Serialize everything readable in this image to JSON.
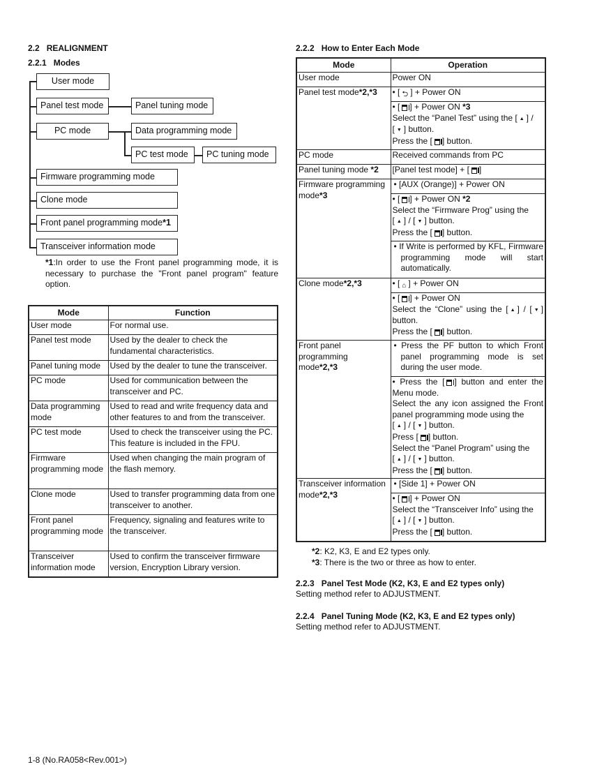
{
  "section": {
    "number": "2.2",
    "title": "REALIGNMENT"
  },
  "sub1": {
    "number": "2.2.1",
    "title": "Modes"
  },
  "diagram": {
    "user": "User mode",
    "panel_test": "Panel test mode",
    "panel_tuning": "Panel tuning mode",
    "pc": "PC mode",
    "data_prog": "Data programming mode",
    "pc_test": "PC test mode",
    "pc_tuning": "PC tuning mode",
    "firmware": "Firmware programming mode",
    "clone": "Clone mode",
    "front": "Front panel programming mode",
    "front_mark": "*1",
    "transceiver": "Transceiver information mode"
  },
  "footnote1": {
    "mark": "*1",
    "text": ":In order to use the Front panel programming mode, it is necessary to purchase the \"Front panel program\" feature option."
  },
  "function_table": {
    "headers": [
      "Mode",
      "Function"
    ],
    "rows": [
      [
        "User mode",
        "For normal use."
      ],
      [
        "Panel test mode",
        "Used by the dealer to check the fundamental characteristics."
      ],
      [
        "Panel tuning mode",
        "Used by the dealer to tune the transceiver."
      ],
      [
        "PC mode",
        "Used for communication between the transceiver and PC."
      ],
      [
        "Data programming mode",
        "Used to read and write frequency data and other features to and from the transceiver."
      ],
      [
        "PC test mode",
        "Used to check the transceiver using the PC. This feature is included in the FPU."
      ],
      [
        "Firmware programming mode",
        "Used when changing the main program of the flash memory."
      ],
      [
        "Clone mode",
        "Used to transfer programming data from one transceiver to another."
      ],
      [
        "Front panel programming mode",
        "Frequency, signaling and features write to the transceiver."
      ],
      [
        "Transceiver information mode",
        "Used to confirm the transceiver firmware version, Encryption Library version."
      ]
    ]
  },
  "sub2": {
    "number": "2.2.2",
    "title": "How to Enter Each Mode"
  },
  "enter_table": {
    "headers": [
      "Mode",
      "Operation"
    ],
    "rows": [
      {
        "mode": [
          "User mode"
        ],
        "ops": [
          [
            [
              "Power ON"
            ]
          ]
        ]
      },
      {
        "mode": [
          "Panel test mode",
          {
            "b": "*2,*3"
          }
        ],
        "ops": [
          [
            [
              "• [",
              {
                "icon": "back"
              },
              "] + Power ON"
            ]
          ],
          [
            [
              "• [",
              {
                "icon": "menu"
              },
              "] + Power ON ",
              {
                "b": "*3"
              }
            ],
            [
              "Select the “Panel Test” using the [",
              {
                "icon": "up"
              },
              "] /"
            ],
            [
              "[",
              {
                "icon": "down"
              },
              "] button."
            ],
            [
              "Press the [",
              {
                "icon": "menu"
              },
              "] button."
            ]
          ]
        ]
      },
      {
        "mode": [
          "PC mode"
        ],
        "ops": [
          [
            [
              "Received commands from PC"
            ]
          ]
        ]
      },
      {
        "mode": [
          "Panel tuning mode ",
          {
            "b": "*2"
          }
        ],
        "ops": [
          [
            [
              "[Panel test mode] + [",
              {
                "icon": "menu"
              },
              "]"
            ]
          ]
        ]
      },
      {
        "mode": [
          "Firmware programming mode",
          {
            "b": "*3"
          }
        ],
        "ops": [
          [
            [
              "• [AUX (Orange)] + Power ON"
            ]
          ],
          [
            [
              "• [",
              {
                "icon": "menu"
              },
              "] + Power ON ",
              {
                "b": "*2"
              }
            ],
            [
              "Select the “Firmware Prog” using the"
            ],
            [
              "[",
              {
                "icon": "up"
              },
              "] / [",
              {
                "icon": "down"
              },
              "] button."
            ],
            [
              "Press the [",
              {
                "icon": "menu"
              },
              "] button."
            ]
          ],
          [
            [
              "• If Write is performed by KFL, Firmware programming mode will start automatically."
            ]
          ]
        ]
      },
      {
        "mode": [
          "Clone mode",
          {
            "b": "*2,*3"
          }
        ],
        "ops": [
          [
            [
              "• [",
              {
                "icon": "home"
              },
              "] + Power ON"
            ]
          ],
          [
            [
              "• [",
              {
                "icon": "menu"
              },
              "] + Power ON"
            ],
            [
              "Select the “Clone” using the [",
              {
                "icon": "up"
              },
              "] / [",
              {
                "icon": "down"
              },
              "] button."
            ],
            [
              "Press the [",
              {
                "icon": "menu"
              },
              "] button."
            ]
          ]
        ]
      },
      {
        "mode": [
          "Front panel programming mode",
          {
            "b": "*2,*3"
          }
        ],
        "ops": [
          [
            [
              "• Press the PF button to which Front panel programming mode is set during the user mode."
            ]
          ],
          [
            [
              "• Press the [",
              {
                "icon": "menu"
              },
              "] button and enter the Menu mode."
            ],
            [
              "Select the any icon assigned the Front panel programming mode using the"
            ],
            [
              "[",
              {
                "icon": "up"
              },
              "] / [",
              {
                "icon": "down"
              },
              "] button."
            ],
            [
              "Press [",
              {
                "icon": "menu"
              },
              "] button."
            ],
            [
              "Select the “Panel Program” using the"
            ],
            [
              "[",
              {
                "icon": "up"
              },
              "] / [",
              {
                "icon": "down"
              },
              "] button."
            ],
            [
              "Press the [",
              {
                "icon": "menu"
              },
              "] button."
            ]
          ]
        ]
      },
      {
        "mode": [
          "Transceiver information mode",
          {
            "b": "*2,*3"
          }
        ],
        "ops": [
          [
            [
              "• [Side 1] + Power ON"
            ]
          ],
          [
            [
              "• [",
              {
                "icon": "menu"
              },
              "] + Power ON"
            ],
            [
              "Select the “Transceiver Info” using the"
            ],
            [
              "[",
              {
                "icon": "up"
              },
              "] / [",
              {
                "icon": "down"
              },
              "] button."
            ],
            [
              "Press the [",
              {
                "icon": "menu"
              },
              "] button."
            ]
          ]
        ]
      }
    ]
  },
  "footnotes2": [
    {
      "mark": "*2",
      "text": ": K2, K3, E and E2 types only."
    },
    {
      "mark": "*3",
      "text": ": There is the two or three as how to enter."
    }
  ],
  "sub3": {
    "number": "2.2.3",
    "title": "Panel Test Mode (K2, K3, E and E2 types only)",
    "body": "Setting method refer to ADJUSTMENT."
  },
  "sub4": {
    "number": "2.2.4",
    "title": "Panel Tuning Mode (K2, K3, E and E2 types only)",
    "body": "Setting method refer to ADJUSTMENT."
  },
  "footer": "1-8 (No.RA058<Rev.001>)"
}
